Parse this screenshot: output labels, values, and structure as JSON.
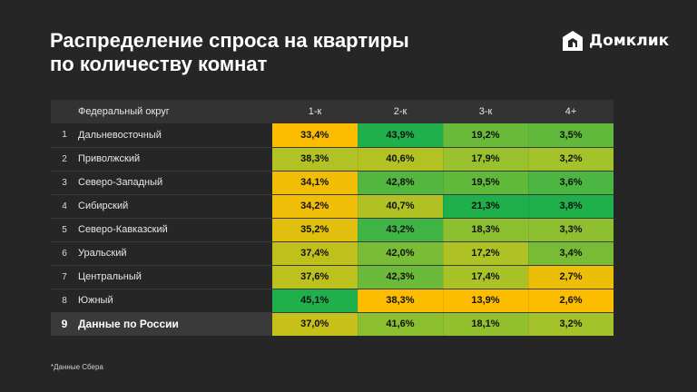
{
  "title": {
    "line1": "Распределение спроса на квартиры",
    "line2": "по количеству комнат"
  },
  "logo": {
    "text": "Домклик",
    "icon": "domclick-house-icon"
  },
  "table": {
    "headers": {
      "district": "Федеральный округ",
      "c1": "1-к",
      "c2": "2-к",
      "c3": "3-к",
      "c4": "4+"
    },
    "rows": [
      {
        "num": "1",
        "name": "Дальневосточный",
        "v1": "33,4%",
        "v2": "43,9%",
        "v3": "19,2%",
        "v4": "3,5%"
      },
      {
        "num": "2",
        "name": "Приволжский",
        "v1": "38,3%",
        "v2": "40,6%",
        "v3": "17,9%",
        "v4": "3,2%"
      },
      {
        "num": "3",
        "name": "Северо-Западный",
        "v1": "34,1%",
        "v2": "42,8%",
        "v3": "19,5%",
        "v4": "3,6%"
      },
      {
        "num": "4",
        "name": "Сибирский",
        "v1": "34,2%",
        "v2": "40,7%",
        "v3": "21,3%",
        "v4": "3,8%"
      },
      {
        "num": "5",
        "name": "Северо-Кавказский",
        "v1": "35,2%",
        "v2": "43,2%",
        "v3": "18,3%",
        "v4": "3,3%"
      },
      {
        "num": "6",
        "name": "Уральский",
        "v1": "37,4%",
        "v2": "42,0%",
        "v3": "17,2%",
        "v4": "3,4%"
      },
      {
        "num": "7",
        "name": "Центральный",
        "v1": "37,6%",
        "v2": "42,3%",
        "v3": "17,4%",
        "v4": "2,7%"
      },
      {
        "num": "8",
        "name": "Южный",
        "v1": "45,1%",
        "v2": "38,3%",
        "v3": "13,9%",
        "v4": "2,6%"
      }
    ],
    "total": {
      "num": "9",
      "name": "Данные по России",
      "v1": "37,0%",
      "v2": "41,6%",
      "v3": "18,1%",
      "v4": "3,2%"
    }
  },
  "colors": {
    "low": "#fcbd00",
    "mid": "#a4c22a",
    "high": "#1fb04c",
    "background": "#262626",
    "header": "#333333",
    "total_row": "#3a3a3a"
  },
  "footnote": "*Данные Сбера"
}
